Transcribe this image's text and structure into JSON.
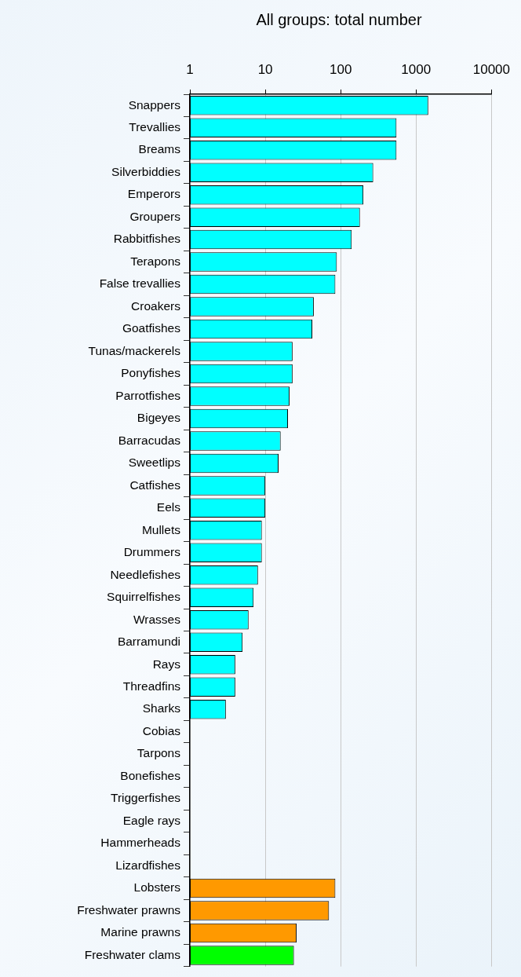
{
  "chart_data": {
    "type": "bar",
    "orientation": "horizontal",
    "title": "All groups: total number",
    "categories": [
      "Snappers",
      "Trevallies",
      "Breams",
      "Silverbiddies",
      "Emperors",
      "Groupers",
      "Rabbitfishes",
      "Terapons",
      "False trevallies",
      "Croakers",
      "Goatfishes",
      "Tunas/mackerels",
      "Ponyfishes",
      "Parrotfishes",
      "Bigeyes",
      "Barracudas",
      "Sweetlips",
      "Catfishes",
      "Eels",
      "Mullets",
      "Drummers",
      "Needlefishes",
      "Squirrelfishes",
      "Wrasses",
      "Barramundi",
      "Rays",
      "Threadfins",
      "Sharks",
      "Cobias",
      "Tarpons",
      "Bonefishes",
      "Triggerfishes",
      "Eagle rays",
      "Hammerheads",
      "Lizardfishes",
      "Lobsters",
      "Freshwater prawns",
      "Marine prawns",
      "Freshwater clams"
    ],
    "values": [
      1450,
      550,
      550,
      270,
      200,
      180,
      140,
      89,
      85,
      44,
      42,
      23,
      23,
      21,
      20,
      16,
      15,
      10,
      10,
      9,
      9,
      8,
      7,
      6,
      5,
      4,
      4,
      3,
      null,
      null,
      null,
      null,
      null,
      null,
      null,
      85,
      70,
      26,
      24
    ],
    "colors": [
      "#00ffff",
      "#00ffff",
      "#00ffff",
      "#00ffff",
      "#00ffff",
      "#00ffff",
      "#00ffff",
      "#00ffff",
      "#00ffff",
      "#00ffff",
      "#00ffff",
      "#00ffff",
      "#00ffff",
      "#00ffff",
      "#00ffff",
      "#00ffff",
      "#00ffff",
      "#00ffff",
      "#00ffff",
      "#00ffff",
      "#00ffff",
      "#00ffff",
      "#00ffff",
      "#00ffff",
      "#00ffff",
      "#00ffff",
      "#00ffff",
      "#00ffff",
      "#00ffff",
      "#00ffff",
      "#00ffff",
      "#00ffff",
      "#00ffff",
      "#00ffff",
      "#00ffff",
      "#ff9900",
      "#ff9900",
      "#ff9900",
      "#00ff00"
    ],
    "log": "x",
    "xlim": [
      1,
      10000
    ],
    "xticks": [
      1,
      10,
      100,
      1000,
      10000
    ],
    "grid": "x"
  }
}
